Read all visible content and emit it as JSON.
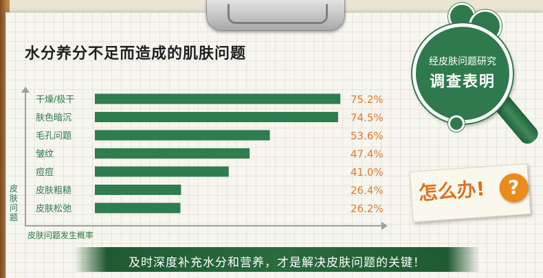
{
  "title": "水分养分不足而造成的肌肤问题",
  "colors": {
    "bar": "#2e7d4f",
    "value_text": "#e07a2a",
    "label_text": "#2a7a4a",
    "badge_green": "#2f7a4c",
    "question_orange": "#ec8a1c"
  },
  "chart_data": {
    "type": "bar",
    "orientation": "horizontal",
    "categories": [
      "干燥/极干",
      "肤色暗沉",
      "毛孔问题",
      "皱纹",
      "痘痘",
      "皮肤粗糙",
      "皮肤松弛"
    ],
    "values": [
      75.2,
      74.5,
      53.6,
      47.4,
      41.0,
      26.4,
      26.2
    ],
    "value_labels": [
      "75.2%",
      "74.5%",
      "53.6%",
      "47.4%",
      "41.0%",
      "26.4%",
      "26.2%"
    ],
    "xlabel": "皮肤问题发生概率",
    "ylabel": "皮肤问题",
    "xlim": [
      0,
      100
    ],
    "grid": false,
    "legend": "none"
  },
  "badge": {
    "line1": "经皮肤问题研究",
    "line2": "调查表明"
  },
  "note": {
    "text": "怎么办!",
    "icon": "question-mark-icon",
    "icon_glyph": "?"
  },
  "banner": {
    "text": "及时深度补充水分和营养，才是解决皮肤问题的关键！"
  }
}
